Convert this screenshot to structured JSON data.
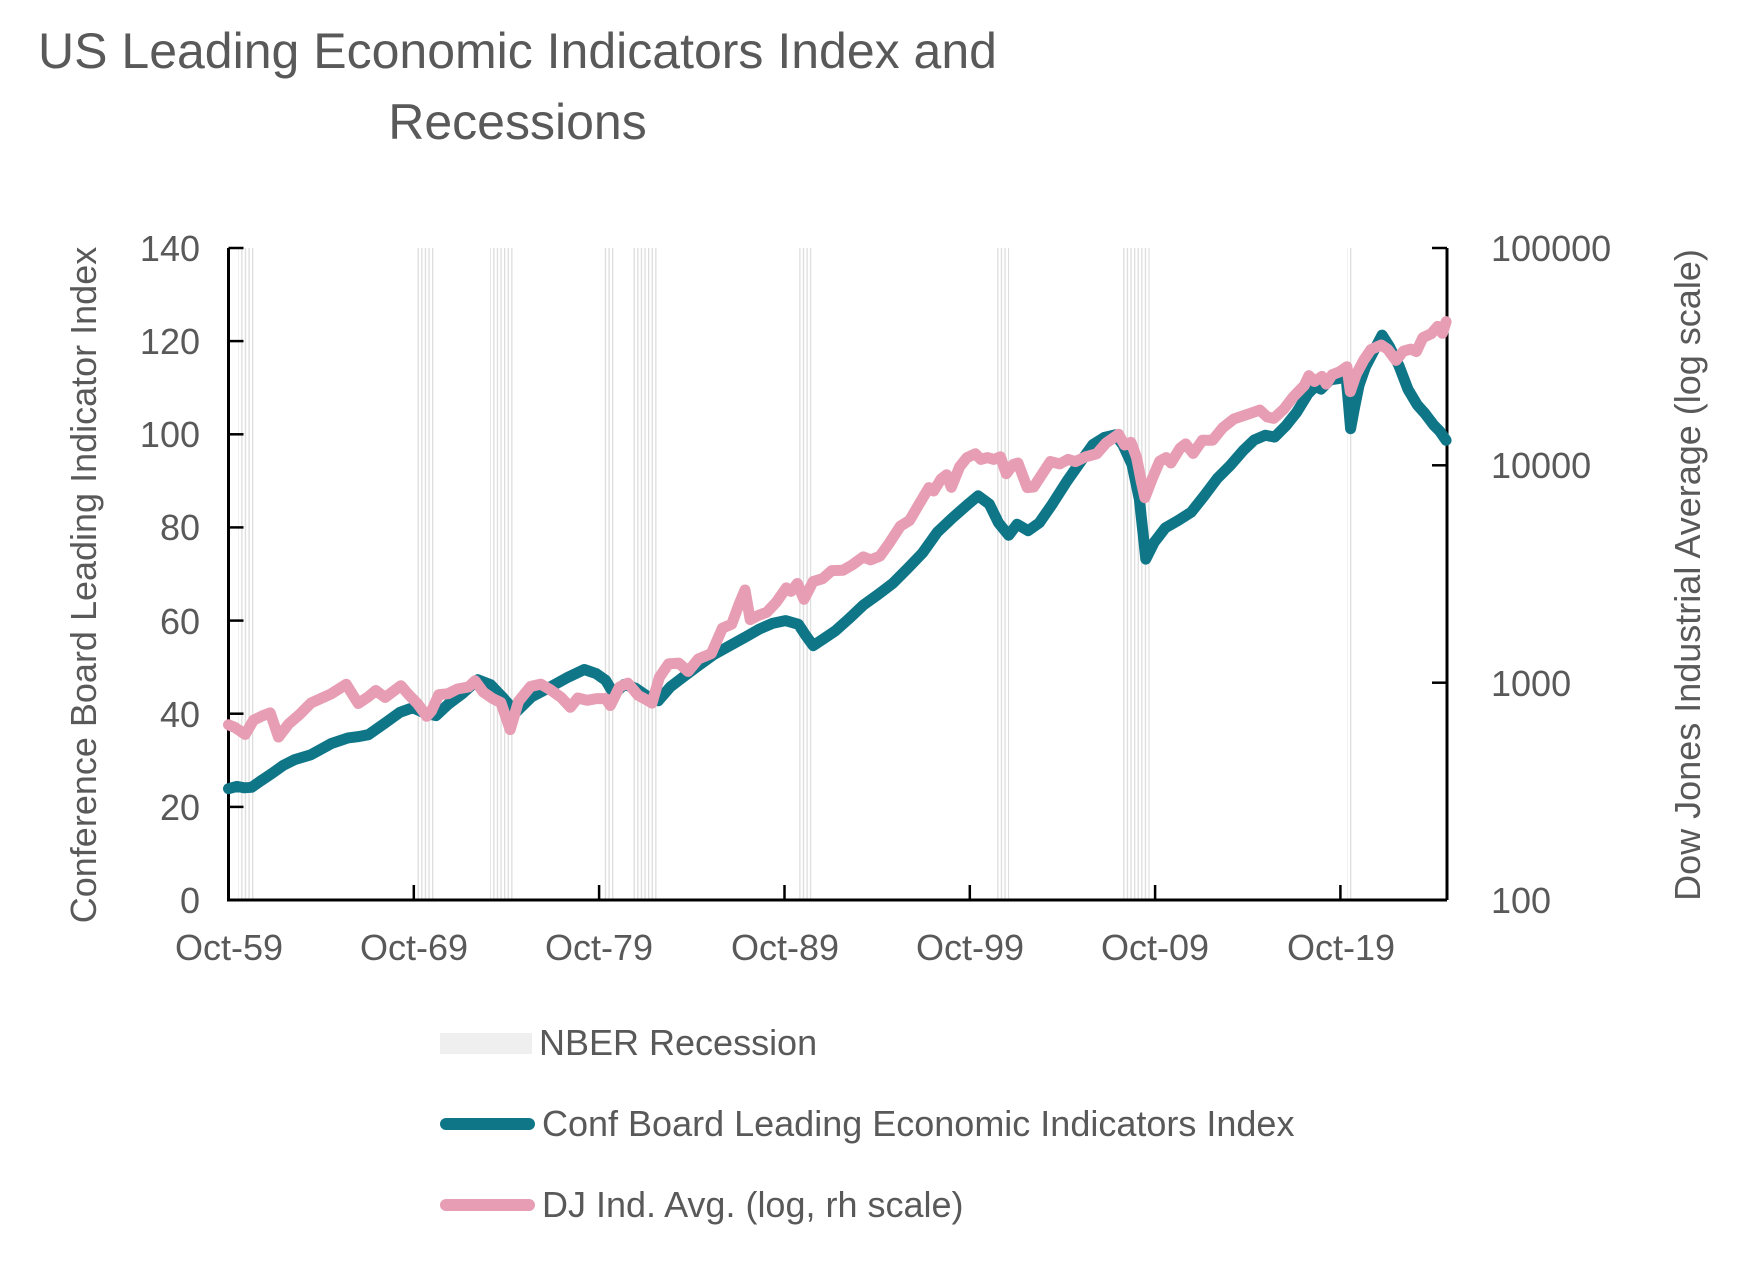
{
  "title": {
    "text": "US Leading Economic Indicators Index and Recessions",
    "line1": "US Leading Economic Indicators Index and",
    "line2": "Recessions"
  },
  "axes": {
    "left": {
      "title": "Conference Board Leading Indicator Index",
      "tick_labels": [
        "0",
        "20",
        "40",
        "60",
        "80",
        "100",
        "120",
        "140"
      ]
    },
    "right": {
      "title": "Dow Jones Industrial Average (log scale)",
      "tick_labels": [
        "100",
        "1000",
        "10000",
        "100000"
      ]
    },
    "x": {
      "tick_labels": [
        "Oct-59",
        "Oct-69",
        "Oct-79",
        "Oct-89",
        "Oct-99",
        "Oct-09",
        "Oct-19"
      ]
    }
  },
  "legend": {
    "items": [
      {
        "label": "NBER Recession",
        "swatch": "area",
        "color": "#efefef"
      },
      {
        "label": "Conf Board Leading Economic Indicators Index",
        "swatch": "line",
        "color": "#0f7688"
      },
      {
        "label": "DJ Ind. Avg. (log, rh scale)",
        "swatch": "line",
        "color": "#e79db4"
      }
    ]
  },
  "colors": {
    "lei_line": "#0f7688",
    "dj_line": "#e79db4",
    "recession_stripe": "#dddddd",
    "axis": "#000000",
    "text": "#595959"
  },
  "chart_data": {
    "type": "line",
    "title": "US Leading Economic Indicators Index and Recessions",
    "x_range_years": [
      1959.75,
      2025.5
    ],
    "x_ticks_years": [
      1959.75,
      1969.75,
      1979.75,
      1989.75,
      1999.75,
      2009.75,
      2019.75
    ],
    "x_tick_labels": [
      "Oct-59",
      "Oct-69",
      "Oct-79",
      "Oct-89",
      "Oct-99",
      "Oct-09",
      "Oct-19"
    ],
    "left_ylabel": "Conference Board Leading Indicator Index",
    "right_ylabel": "Dow Jones Industrial Average (log scale)",
    "left_ylim": [
      0,
      140
    ],
    "left_ticks": [
      0,
      20,
      40,
      60,
      80,
      100,
      120,
      140
    ],
    "right_ylim": [
      100,
      100000
    ],
    "right_ticks": [
      100,
      1000,
      10000,
      100000
    ],
    "right_scale": "log",
    "grid": false,
    "legend_position": "bottom-left",
    "recessions": {
      "name": "NBER Recession",
      "intervals": [
        [
          1960.29,
          1961.12
        ],
        [
          1969.92,
          1970.87
        ],
        [
          1973.87,
          1975.17
        ],
        [
          1980.0,
          1980.54
        ],
        [
          1981.5,
          1982.87
        ],
        [
          1990.54,
          1991.2
        ],
        [
          2001.2,
          2001.87
        ],
        [
          2007.95,
          2009.45
        ],
        [
          2020.12,
          2020.37
        ]
      ]
    },
    "series": [
      {
        "name": "Conf Board Leading Economic Indicators Index",
        "axis": "left",
        "color": "#0f7688",
        "points": [
          [
            1959.75,
            23.9
          ],
          [
            1960.2,
            24.4
          ],
          [
            1960.6,
            24.1
          ],
          [
            1961.0,
            24.2
          ],
          [
            1961.5,
            25.6
          ],
          [
            1962.1,
            27.2
          ],
          [
            1962.7,
            28.9
          ],
          [
            1963.3,
            30.1
          ],
          [
            1964.2,
            31.2
          ],
          [
            1965.3,
            33.6
          ],
          [
            1966.2,
            34.8
          ],
          [
            1966.8,
            35.1
          ],
          [
            1967.3,
            35.5
          ],
          [
            1968.2,
            38.0
          ],
          [
            1969.0,
            40.3
          ],
          [
            1969.7,
            41.3
          ],
          [
            1970.3,
            40.2
          ],
          [
            1970.95,
            39.6
          ],
          [
            1971.6,
            42.0
          ],
          [
            1972.4,
            44.4
          ],
          [
            1973.2,
            47.3
          ],
          [
            1973.9,
            46.2
          ],
          [
            1974.5,
            43.7
          ],
          [
            1975.25,
            40.3
          ],
          [
            1976.1,
            43.6
          ],
          [
            1977.0,
            45.5
          ],
          [
            1978.0,
            47.7
          ],
          [
            1978.95,
            49.5
          ],
          [
            1979.6,
            48.6
          ],
          [
            1980.1,
            47.2
          ],
          [
            1980.55,
            44.2
          ],
          [
            1981.1,
            46.3
          ],
          [
            1981.7,
            45.5
          ],
          [
            1982.4,
            43.6
          ],
          [
            1982.95,
            42.8
          ],
          [
            1983.6,
            45.8
          ],
          [
            1984.2,
            47.6
          ],
          [
            1985.0,
            50.0
          ],
          [
            1985.9,
            52.6
          ],
          [
            1986.8,
            54.6
          ],
          [
            1987.7,
            56.6
          ],
          [
            1988.4,
            58.2
          ],
          [
            1989.1,
            59.4
          ],
          [
            1989.8,
            60.0
          ],
          [
            1990.5,
            59.2
          ],
          [
            1990.9,
            56.8
          ],
          [
            1991.3,
            54.6
          ],
          [
            1991.9,
            56.2
          ],
          [
            1992.5,
            57.8
          ],
          [
            1993.2,
            60.3
          ],
          [
            1994.0,
            63.3
          ],
          [
            1994.8,
            65.6
          ],
          [
            1995.6,
            68.0
          ],
          [
            1996.4,
            71.2
          ],
          [
            1997.2,
            74.5
          ],
          [
            1998.0,
            79.0
          ],
          [
            1998.8,
            82.0
          ],
          [
            1999.6,
            84.8
          ],
          [
            2000.2,
            86.8
          ],
          [
            2000.8,
            85.0
          ],
          [
            2001.3,
            81.0
          ],
          [
            2001.85,
            78.3
          ],
          [
            2002.3,
            80.7
          ],
          [
            2002.9,
            79.3
          ],
          [
            2003.5,
            81.0
          ],
          [
            2004.2,
            85.0
          ],
          [
            2005.0,
            90.0
          ],
          [
            2005.8,
            94.5
          ],
          [
            2006.4,
            97.8
          ],
          [
            2007.0,
            99.3
          ],
          [
            2007.6,
            99.9
          ],
          [
            2008.0,
            97.8
          ],
          [
            2008.5,
            93.5
          ],
          [
            2008.9,
            86.0
          ],
          [
            2009.25,
            73.2
          ],
          [
            2009.7,
            76.8
          ],
          [
            2010.3,
            79.9
          ],
          [
            2011.0,
            81.5
          ],
          [
            2011.7,
            83.3
          ],
          [
            2012.4,
            86.8
          ],
          [
            2013.1,
            90.5
          ],
          [
            2013.8,
            93.3
          ],
          [
            2014.5,
            96.5
          ],
          [
            2015.1,
            98.8
          ],
          [
            2015.7,
            99.8
          ],
          [
            2016.2,
            99.4
          ],
          [
            2016.8,
            101.8
          ],
          [
            2017.4,
            104.8
          ],
          [
            2018.0,
            108.7
          ],
          [
            2018.4,
            110.3
          ],
          [
            2018.7,
            109.7
          ],
          [
            2019.2,
            111.7
          ],
          [
            2019.7,
            112.0
          ],
          [
            2020.05,
            112.4
          ],
          [
            2020.15,
            108.0
          ],
          [
            2020.3,
            101.2
          ],
          [
            2020.5,
            105.5
          ],
          [
            2020.75,
            110.5
          ],
          [
            2021.1,
            114.5
          ],
          [
            2021.6,
            118.3
          ],
          [
            2022.0,
            121.3
          ],
          [
            2022.4,
            118.8
          ],
          [
            2022.9,
            114.8
          ],
          [
            2023.4,
            109.6
          ],
          [
            2023.9,
            106.3
          ],
          [
            2024.3,
            104.5
          ],
          [
            2024.8,
            101.9
          ],
          [
            2025.1,
            100.7
          ],
          [
            2025.45,
            98.7
          ]
        ]
      },
      {
        "name": "DJ Ind. Avg. (log, rh scale)",
        "axis": "right",
        "color": "#e79db4",
        "points": [
          [
            1959.75,
            640
          ],
          [
            1960.1,
            622
          ],
          [
            1960.65,
            578
          ],
          [
            1961.1,
            672
          ],
          [
            1961.6,
            705
          ],
          [
            1962.0,
            726
          ],
          [
            1962.45,
            562
          ],
          [
            1963.0,
            646
          ],
          [
            1963.6,
            715
          ],
          [
            1964.2,
            806
          ],
          [
            1965.3,
            890
          ],
          [
            1966.1,
            983
          ],
          [
            1966.75,
            802
          ],
          [
            1967.3,
            862
          ],
          [
            1967.7,
            920
          ],
          [
            1968.2,
            855
          ],
          [
            1968.7,
            920
          ],
          [
            1969.05,
            968
          ],
          [
            1969.5,
            875
          ],
          [
            1969.95,
            800
          ],
          [
            1970.45,
            700
          ],
          [
            1970.7,
            740
          ],
          [
            1971.1,
            880
          ],
          [
            1971.6,
            890
          ],
          [
            1972.1,
            935
          ],
          [
            1972.7,
            955
          ],
          [
            1973.05,
            1020
          ],
          [
            1973.5,
            905
          ],
          [
            1974.0,
            846
          ],
          [
            1974.45,
            810
          ],
          [
            1974.95,
            608
          ],
          [
            1975.4,
            820
          ],
          [
            1976.05,
            960
          ],
          [
            1976.6,
            985
          ],
          [
            1977.1,
            930
          ],
          [
            1977.7,
            855
          ],
          [
            1978.2,
            770
          ],
          [
            1978.6,
            850
          ],
          [
            1979.1,
            830
          ],
          [
            1979.6,
            845
          ],
          [
            1980.1,
            845
          ],
          [
            1980.35,
            785
          ],
          [
            1980.85,
            955
          ],
          [
            1981.3,
            995
          ],
          [
            1981.85,
            875
          ],
          [
            1982.4,
            825
          ],
          [
            1982.6,
            805
          ],
          [
            1983.0,
            1060
          ],
          [
            1983.5,
            1220
          ],
          [
            1984.05,
            1230
          ],
          [
            1984.55,
            1125
          ],
          [
            1985.1,
            1285
          ],
          [
            1985.8,
            1360
          ],
          [
            1986.4,
            1780
          ],
          [
            1986.9,
            1860
          ],
          [
            1987.3,
            2300
          ],
          [
            1987.62,
            2670
          ],
          [
            1987.9,
            1950
          ],
          [
            1988.3,
            2030
          ],
          [
            1988.8,
            2110
          ],
          [
            1989.3,
            2340
          ],
          [
            1989.85,
            2730
          ],
          [
            1990.1,
            2630
          ],
          [
            1990.45,
            2860
          ],
          [
            1990.8,
            2420
          ],
          [
            1991.3,
            2920
          ],
          [
            1991.8,
            3010
          ],
          [
            1992.3,
            3280
          ],
          [
            1992.9,
            3290
          ],
          [
            1993.4,
            3480
          ],
          [
            1994.0,
            3790
          ],
          [
            1994.4,
            3670
          ],
          [
            1994.9,
            3820
          ],
          [
            1995.4,
            4380
          ],
          [
            1996.0,
            5250
          ],
          [
            1996.5,
            5580
          ],
          [
            1997.0,
            6600
          ],
          [
            1997.55,
            7900
          ],
          [
            1997.8,
            7620
          ],
          [
            1998.2,
            8650
          ],
          [
            1998.5,
            9050
          ],
          [
            1998.75,
            7920
          ],
          [
            1999.2,
            9850
          ],
          [
            1999.6,
            10850
          ],
          [
            2000.05,
            11300
          ],
          [
            2000.35,
            10650
          ],
          [
            2000.7,
            10850
          ],
          [
            2001.05,
            10650
          ],
          [
            2001.4,
            10950
          ],
          [
            2001.72,
            9150
          ],
          [
            2002.1,
            10100
          ],
          [
            2002.35,
            10250
          ],
          [
            2002.85,
            7900
          ],
          [
            2003.2,
            7950
          ],
          [
            2003.7,
            9250
          ],
          [
            2004.1,
            10400
          ],
          [
            2004.6,
            10150
          ],
          [
            2005.05,
            10650
          ],
          [
            2005.45,
            10400
          ],
          [
            2006.0,
            10950
          ],
          [
            2006.6,
            11300
          ],
          [
            2007.1,
            12650
          ],
          [
            2007.78,
            13900
          ],
          [
            2008.1,
            12400
          ],
          [
            2008.45,
            12750
          ],
          [
            2008.75,
            10850
          ],
          [
            2009.0,
            8450
          ],
          [
            2009.2,
            7100
          ],
          [
            2009.6,
            8700
          ],
          [
            2010.0,
            10450
          ],
          [
            2010.35,
            10850
          ],
          [
            2010.6,
            10250
          ],
          [
            2011.1,
            12000
          ],
          [
            2011.4,
            12550
          ],
          [
            2011.8,
            11350
          ],
          [
            2012.3,
            13050
          ],
          [
            2012.85,
            13050
          ],
          [
            2013.4,
            14900
          ],
          [
            2014.0,
            16350
          ],
          [
            2014.8,
            17250
          ],
          [
            2015.4,
            17950
          ],
          [
            2015.8,
            16700
          ],
          [
            2016.15,
            16450
          ],
          [
            2016.7,
            18150
          ],
          [
            2017.2,
            20650
          ],
          [
            2017.8,
            23300
          ],
          [
            2018.05,
            25850
          ],
          [
            2018.35,
            24300
          ],
          [
            2018.75,
            25650
          ],
          [
            2018.98,
            23650
          ],
          [
            2019.3,
            26100
          ],
          [
            2019.7,
            26900
          ],
          [
            2020.1,
            28400
          ],
          [
            2020.28,
            21850
          ],
          [
            2020.6,
            26200
          ],
          [
            2021.0,
            30400
          ],
          [
            2021.4,
            34100
          ],
          [
            2021.95,
            35800
          ],
          [
            2022.3,
            34200
          ],
          [
            2022.75,
            30400
          ],
          [
            2023.15,
            33500
          ],
          [
            2023.55,
            34250
          ],
          [
            2023.85,
            33350
          ],
          [
            2024.2,
            38700
          ],
          [
            2024.65,
            40300
          ],
          [
            2025.0,
            43600
          ],
          [
            2025.25,
            40500
          ],
          [
            2025.45,
            45800
          ]
        ]
      }
    ]
  }
}
